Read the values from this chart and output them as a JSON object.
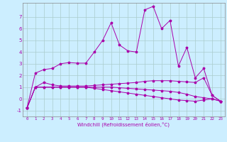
{
  "title": "",
  "xlabel": "Windchill (Refroidissement éolien,°C)",
  "background_color": "#cceeff",
  "grid_color": "#aacccc",
  "line_color": "#aa00aa",
  "xlim": [
    -0.5,
    23.5
  ],
  "ylim": [
    -1.5,
    8.2
  ],
  "yticks": [
    -1,
    0,
    1,
    2,
    3,
    4,
    5,
    6,
    7
  ],
  "xticks": [
    0,
    1,
    2,
    3,
    4,
    5,
    6,
    7,
    8,
    9,
    10,
    11,
    12,
    13,
    14,
    15,
    16,
    17,
    18,
    19,
    20,
    21,
    22,
    23
  ],
  "series": {
    "main": [
      [
        0,
        -0.8
      ],
      [
        1,
        2.2
      ],
      [
        2,
        2.5
      ],
      [
        3,
        2.6
      ],
      [
        4,
        3.0
      ],
      [
        5,
        3.1
      ],
      [
        6,
        3.05
      ],
      [
        7,
        3.05
      ],
      [
        8,
        4.0
      ],
      [
        9,
        5.0
      ],
      [
        10,
        6.5
      ],
      [
        11,
        4.6
      ],
      [
        12,
        4.1
      ],
      [
        13,
        4.0
      ],
      [
        14,
        7.6
      ],
      [
        15,
        7.9
      ],
      [
        16,
        6.0
      ],
      [
        17,
        6.7
      ],
      [
        18,
        2.8
      ],
      [
        19,
        4.4
      ],
      [
        20,
        1.8
      ],
      [
        21,
        2.6
      ],
      [
        22,
        0.3
      ],
      [
        23,
        -0.2
      ]
    ],
    "line2": [
      [
        0,
        -0.8
      ],
      [
        1,
        1.0
      ],
      [
        2,
        1.4
      ],
      [
        3,
        1.2
      ],
      [
        4,
        1.1
      ],
      [
        5,
        1.1
      ],
      [
        6,
        1.1
      ],
      [
        7,
        1.1
      ],
      [
        8,
        1.15
      ],
      [
        9,
        1.2
      ],
      [
        10,
        1.25
      ],
      [
        11,
        1.3
      ],
      [
        12,
        1.35
      ],
      [
        13,
        1.4
      ],
      [
        14,
        1.5
      ],
      [
        15,
        1.55
      ],
      [
        16,
        1.55
      ],
      [
        17,
        1.55
      ],
      [
        18,
        1.5
      ],
      [
        19,
        1.45
      ],
      [
        20,
        1.4
      ],
      [
        21,
        1.8
      ],
      [
        22,
        0.3
      ],
      [
        23,
        -0.2
      ]
    ],
    "line3": [
      [
        0,
        -0.8
      ],
      [
        1,
        1.0
      ],
      [
        2,
        1.0
      ],
      [
        3,
        1.0
      ],
      [
        4,
        1.0
      ],
      [
        5,
        1.0
      ],
      [
        6,
        1.0
      ],
      [
        7,
        1.0
      ],
      [
        8,
        1.0
      ],
      [
        9,
        1.0
      ],
      [
        10,
        1.0
      ],
      [
        11,
        0.95
      ],
      [
        12,
        0.9
      ],
      [
        13,
        0.85
      ],
      [
        14,
        0.8
      ],
      [
        15,
        0.75
      ],
      [
        16,
        0.7
      ],
      [
        17,
        0.65
      ],
      [
        18,
        0.55
      ],
      [
        19,
        0.4
      ],
      [
        20,
        0.2
      ],
      [
        21,
        0.1
      ],
      [
        22,
        0.0
      ],
      [
        23,
        -0.2
      ]
    ],
    "line4": [
      [
        0,
        -0.8
      ],
      [
        1,
        1.0
      ],
      [
        2,
        1.0
      ],
      [
        3,
        1.0
      ],
      [
        4,
        1.0
      ],
      [
        5,
        1.0
      ],
      [
        6,
        1.0
      ],
      [
        7,
        1.0
      ],
      [
        8,
        0.9
      ],
      [
        9,
        0.8
      ],
      [
        10,
        0.7
      ],
      [
        11,
        0.6
      ],
      [
        12,
        0.5
      ],
      [
        13,
        0.4
      ],
      [
        14,
        0.3
      ],
      [
        15,
        0.2
      ],
      [
        16,
        0.1
      ],
      [
        17,
        0.0
      ],
      [
        18,
        -0.1
      ],
      [
        19,
        -0.15
      ],
      [
        20,
        -0.2
      ],
      [
        21,
        -0.1
      ],
      [
        22,
        0.0
      ],
      [
        23,
        -0.2
      ]
    ]
  }
}
